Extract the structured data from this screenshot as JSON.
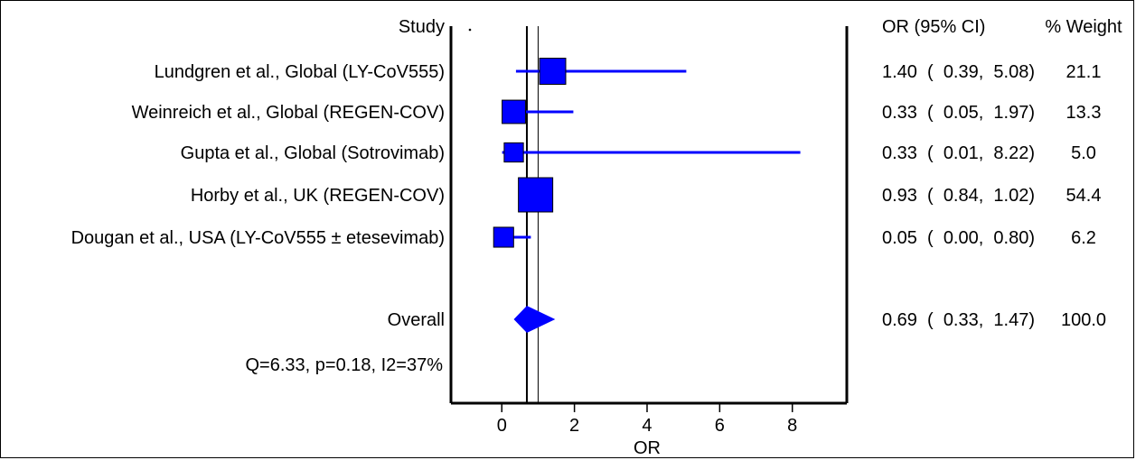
{
  "chart_data": {
    "type": "forest",
    "columns": {
      "study": "Study",
      "ci": "OR (95% CI)",
      "weight": "% Weight"
    },
    "xlabel": "OR",
    "x_ticks": [
      "0",
      "2",
      "4",
      "6",
      "8"
    ],
    "xlim": [
      -1.4,
      9.5
    ],
    "reference_line": 1,
    "summary_line": 0.69,
    "studies": [
      {
        "label": "Lundgren et al., Global (LY-CoV555)",
        "or": 1.4,
        "lo": 0.39,
        "hi": 5.08,
        "ci_text": "1.40  (  0.39,  5.08)",
        "weight": 21.1,
        "weight_text": "21.1"
      },
      {
        "label": "Weinreich et al., Global (REGEN-COV)",
        "or": 0.33,
        "lo": 0.05,
        "hi": 1.97,
        "ci_text": "0.33  (  0.05,  1.97)",
        "weight": 13.3,
        "weight_text": "13.3"
      },
      {
        "label": "Gupta et al., Global (Sotrovimab)",
        "or": 0.33,
        "lo": 0.01,
        "hi": 8.22,
        "ci_text": "0.33  (  0.01,  8.22)",
        "weight": 5.0,
        "weight_text": "5.0"
      },
      {
        "label": "Horby et al., UK (REGEN-COV)",
        "or": 0.93,
        "lo": 0.84,
        "hi": 1.02,
        "ci_text": "0.93  (  0.84,  1.02)",
        "weight": 54.4,
        "weight_text": "54.4"
      },
      {
        "label": "Dougan et al., USA (LY-CoV555 ±  etesevimab)",
        "or": 0.05,
        "lo": 0.0,
        "hi": 0.8,
        "ci_text": "0.05  (  0.00,  0.80)",
        "weight": 6.2,
        "weight_text": "6.2"
      }
    ],
    "overall": {
      "label": "Overall",
      "or": 0.69,
      "lo": 0.33,
      "hi": 1.47,
      "ci_text": "0.69  (  0.33,  1.47)",
      "weight_text": "100.0"
    },
    "heterogeneity": "Q=6.33, p=0.18, I2=37%",
    "colors": {
      "marker": "#0000ff",
      "line": "#000000"
    }
  }
}
